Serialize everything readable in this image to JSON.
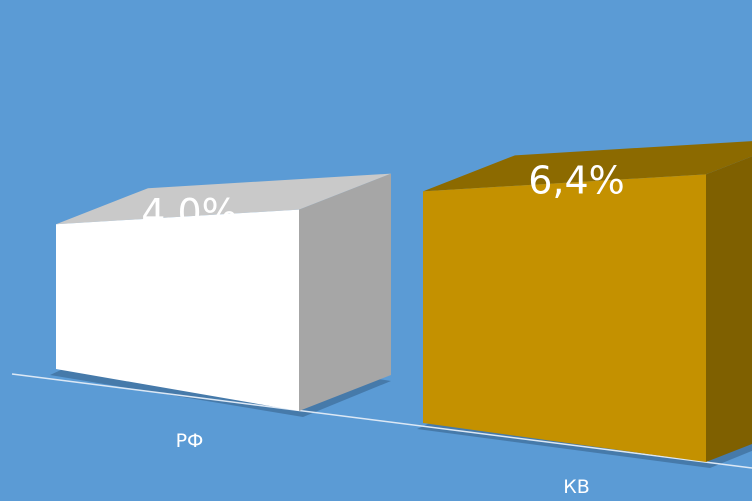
{
  "chart_data": {
    "type": "bar",
    "categories": [
      "РФ",
      "КВ"
    ],
    "values": [
      4.0,
      6.4
    ],
    "value_labels": [
      "4,0%",
      "6,4%"
    ],
    "unit": "%",
    "three_d": true,
    "grid": false,
    "legend": "none",
    "colors": {
      "background": "#5b9bd5",
      "floor_line": "#dce8f5",
      "label_text": "#ffffff",
      "bars": [
        {
          "front": "#ffffff",
          "top": "#c9c9c9",
          "side": "#a6a6a6"
        },
        {
          "front": "#c49100",
          "top": "#8c6a00",
          "side": "#7f6000"
        }
      ]
    }
  }
}
